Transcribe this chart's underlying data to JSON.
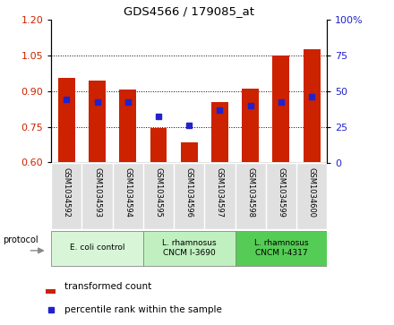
{
  "title": "GDS4566 / 179085_at",
  "samples": [
    "GSM1034592",
    "GSM1034593",
    "GSM1034594",
    "GSM1034595",
    "GSM1034596",
    "GSM1034597",
    "GSM1034598",
    "GSM1034599",
    "GSM1034600"
  ],
  "bar_values": [
    0.955,
    0.945,
    0.905,
    0.745,
    0.685,
    0.855,
    0.91,
    1.05,
    1.075
  ],
  "dot_values": [
    0.865,
    0.855,
    0.855,
    0.795,
    0.755,
    0.82,
    0.84,
    0.855,
    0.875
  ],
  "ylim_left": [
    0.6,
    1.2
  ],
  "ylim_right": [
    0,
    100
  ],
  "yticks_left": [
    0.6,
    0.75,
    0.9,
    1.05,
    1.2
  ],
  "yticks_right": [
    0,
    25,
    50,
    75,
    100
  ],
  "bar_color": "#cc2200",
  "dot_color": "#2222cc",
  "group_labels": [
    "E. coli control",
    "L. rhamnosus\nCNCM I-3690",
    "L. rhamnosus\nCNCM I-4317"
  ],
  "group_ranges": [
    [
      0,
      3
    ],
    [
      3,
      6
    ],
    [
      6,
      9
    ]
  ],
  "group_colors_light": [
    "#d8f5d8",
    "#c0f0c0",
    "#55cc55"
  ],
  "legend_bar_label": "transformed count",
  "legend_dot_label": "percentile rank within the sample",
  "protocol_label": "protocol",
  "grid_lines": [
    0.75,
    0.9,
    1.05
  ],
  "bar_width": 0.55,
  "dot_size": 4
}
